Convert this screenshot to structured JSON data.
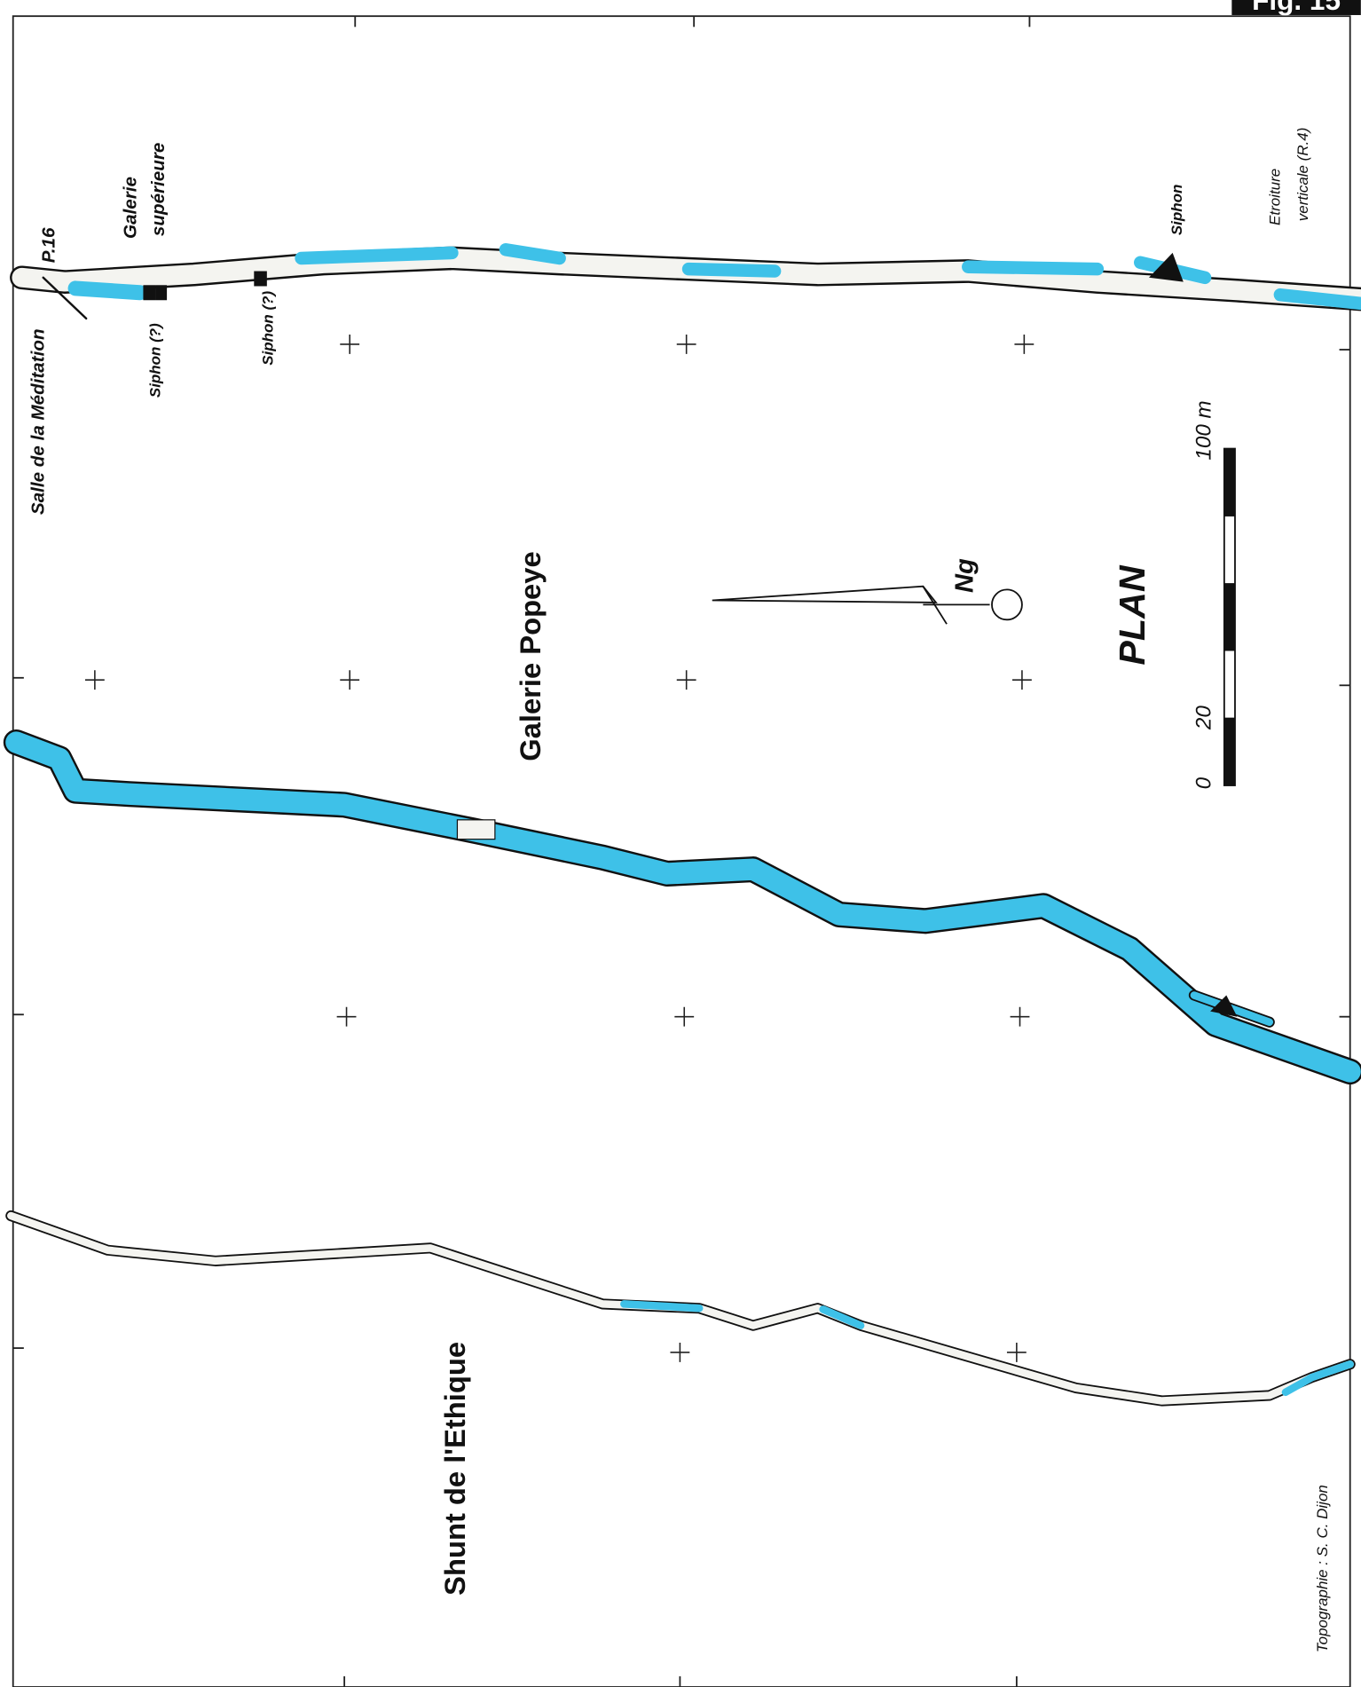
{
  "figure": "Fig. 15",
  "labels": {
    "salle": "Salle de la Méditation",
    "p16": "P.16",
    "galerie_sup": [
      "Galerie",
      "supérieure"
    ],
    "siphon_1": "Siphon (?)",
    "siphon_2": "Siphon (?)",
    "siphon_3": "Siphon",
    "etroiture": [
      "Etroiture",
      "verticale (R.4)"
    ]
  },
  "galleries": {
    "popeye": "Galerie Popeye",
    "shunt": "Shunt de l'Ethique"
  },
  "north": "Ng",
  "plan": "PLAN",
  "scale_bar": {
    "labels": [
      "0",
      "20",
      "100 m"
    ]
  },
  "credit": "Topographie : S. C. Dijon"
}
